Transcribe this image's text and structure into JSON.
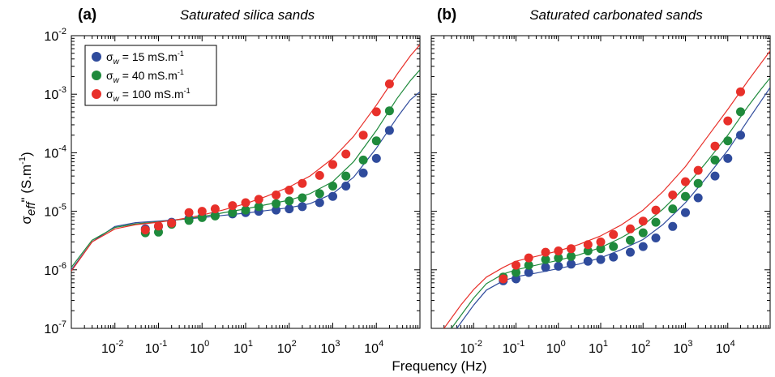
{
  "figure": {
    "xlabel": "Frequency (Hz)",
    "ylabel_main": "σ",
    "ylabel_sub": "eff",
    "ylabel_prime": "\"",
    "ylabel_unit": " (S.m",
    "ylabel_unit_exp": "-1",
    "ylabel_close": ")"
  },
  "legend": {
    "items": [
      {
        "sigma": "σ",
        "sub": "w",
        "text": " = 15 mS.m",
        "exp": "-1",
        "color": "#2f4b9c"
      },
      {
        "sigma": "σ",
        "sub": "w",
        "text": " = 40 mS.m",
        "exp": "-1",
        "color": "#1f8a3c"
      },
      {
        "sigma": "σ",
        "sub": "w",
        "text": " = 100 mS.m",
        "exp": "-1",
        "color": "#e8302a"
      }
    ]
  },
  "chart_data": [
    {
      "type": "scatter",
      "panel_label": "(a)",
      "title": "Saturated silica sands",
      "xscale": "log",
      "yscale": "log",
      "xlim": [
        0.001,
        100000
      ],
      "ylim": [
        1e-07,
        0.01
      ],
      "xtick_labels": [
        {
          "value": 0.01,
          "base": "10",
          "exp": "-2"
        },
        {
          "value": 0.1,
          "base": "10",
          "exp": "-1"
        },
        {
          "value": 1,
          "base": "10",
          "exp": "0"
        },
        {
          "value": 10,
          "base": "10",
          "exp": "1"
        },
        {
          "value": 100,
          "base": "10",
          "exp": "2"
        },
        {
          "value": 1000,
          "base": "10",
          "exp": "3"
        },
        {
          "value": 10000,
          "base": "10",
          "exp": "4"
        }
      ],
      "ytick_labels": [
        {
          "value": 1e-07,
          "base": "10",
          "exp": "-7"
        },
        {
          "value": 1e-06,
          "base": "10",
          "exp": "-6"
        },
        {
          "value": 1e-05,
          "base": "10",
          "exp": "-5"
        },
        {
          "value": 0.0001,
          "base": "10",
          "exp": "-4"
        },
        {
          "value": 0.001,
          "base": "10",
          "exp": "-3"
        },
        {
          "value": 0.01,
          "base": "10",
          "exp": "-2"
        }
      ],
      "series": [
        {
          "color": "#2f4b9c",
          "x": [
            0.05,
            0.1,
            0.2,
            0.5,
            1,
            2,
            5,
            10,
            20,
            50,
            100,
            200,
            500,
            1000,
            2000,
            5000,
            10000,
            20000
          ],
          "y": [
            5e-06,
            5.5e-06,
            6.5e-06,
            7.5e-06,
            8e-06,
            8.5e-06,
            9e-06,
            9.5e-06,
            1e-05,
            1.05e-05,
            1.1e-05,
            1.2e-05,
            1.4e-05,
            1.8e-05,
            2.7e-05,
            4.5e-05,
            8e-05,
            0.00024
          ],
          "fit_x": [
            0.001,
            0.003,
            0.01,
            0.03,
            0.1,
            0.3,
            1,
            3,
            10,
            30,
            100,
            300,
            1000,
            3000,
            10000,
            30000,
            60000,
            100000
          ],
          "fit_y": [
            1e-06,
            3e-06,
            5.5e-06,
            6.4e-06,
            6.8e-06,
            7.2e-06,
            7.8e-06,
            8.5e-06,
            9.3e-06,
            1.03e-05,
            1.15e-05,
            1.35e-05,
            2e-05,
            3.8e-05,
            0.00012,
            0.0004,
            0.0008,
            0.0011
          ]
        },
        {
          "color": "#1f8a3c",
          "x": [
            0.05,
            0.1,
            0.2,
            0.5,
            1,
            2,
            5,
            10,
            20,
            50,
            100,
            200,
            500,
            1000,
            2000,
            5000,
            10000,
            20000
          ],
          "y": [
            4.3e-06,
            4.4e-06,
            6e-06,
            7e-06,
            7.8e-06,
            8.3e-06,
            9.5e-06,
            1.05e-05,
            1.2e-05,
            1.35e-05,
            1.5e-05,
            1.7e-05,
            2e-05,
            2.7e-05,
            4e-05,
            7.5e-05,
            0.00016,
            0.00052
          ],
          "fit_x": [
            0.001,
            0.003,
            0.01,
            0.03,
            0.1,
            0.3,
            1,
            3,
            10,
            30,
            100,
            300,
            1000,
            3000,
            10000,
            30000,
            60000,
            100000
          ],
          "fit_y": [
            1.1e-06,
            3.2e-06,
            5.3e-06,
            6.1e-06,
            6.6e-06,
            7.2e-06,
            8.1e-06,
            9.4e-06,
            1.1e-05,
            1.3e-05,
            1.55e-05,
            2e-05,
            3.2e-05,
            7e-05,
            0.00024,
            0.00085,
            0.0017,
            0.0026
          ]
        },
        {
          "color": "#e8302a",
          "x": [
            0.05,
            0.1,
            0.2,
            0.5,
            1,
            2,
            5,
            10,
            20,
            50,
            100,
            200,
            500,
            1000,
            2000,
            5000,
            10000,
            20000
          ],
          "y": [
            4.8e-06,
            5.6e-06,
            6.3e-06,
            9.5e-06,
            1e-05,
            1.1e-05,
            1.25e-05,
            1.4e-05,
            1.6e-05,
            1.9e-05,
            2.3e-05,
            3e-05,
            4.1e-05,
            6.3e-05,
            9.5e-05,
            0.0002,
            0.0005,
            0.0015
          ],
          "fit_x": [
            0.001,
            0.003,
            0.01,
            0.03,
            0.1,
            0.3,
            1,
            3,
            10,
            30,
            100,
            300,
            1000,
            3000,
            10000,
            30000,
            60000,
            100000
          ],
          "fit_y": [
            9.5e-07,
            3e-06,
            5e-06,
            5.9e-06,
            6.5e-06,
            7.3e-06,
            8.6e-06,
            1.05e-05,
            1.35e-05,
            1.8e-05,
            2.6e-05,
            4e-05,
            8e-05,
            0.00019,
            0.00065,
            0.0022,
            0.0045,
            0.007
          ]
        }
      ]
    },
    {
      "type": "scatter",
      "panel_label": "(b)",
      "title": "Saturated carbonated sands",
      "xscale": "log",
      "yscale": "log",
      "xlim": [
        0.001,
        100000
      ],
      "ylim": [
        1e-07,
        0.01
      ],
      "xtick_labels": [
        {
          "value": 0.01,
          "base": "10",
          "exp": "-2"
        },
        {
          "value": 0.1,
          "base": "10",
          "exp": "-1"
        },
        {
          "value": 1,
          "base": "10",
          "exp": "0"
        },
        {
          "value": 10,
          "base": "10",
          "exp": "1"
        },
        {
          "value": 100,
          "base": "10",
          "exp": "2"
        },
        {
          "value": 1000,
          "base": "10",
          "exp": "3"
        },
        {
          "value": 10000,
          "base": "10",
          "exp": "4"
        }
      ],
      "ytick_labels": [],
      "series": [
        {
          "color": "#2f4b9c",
          "x": [
            0.05,
            0.1,
            0.2,
            0.5,
            1,
            2,
            5,
            10,
            20,
            50,
            100,
            200,
            500,
            1000,
            2000,
            5000,
            10000,
            20000
          ],
          "y": [
            6.5e-07,
            7e-07,
            9e-07,
            1.1e-06,
            1.15e-06,
            1.25e-06,
            1.4e-06,
            1.5e-06,
            1.65e-06,
            2e-06,
            2.5e-06,
            3.5e-06,
            5.5e-06,
            9.5e-06,
            1.7e-05,
            4e-05,
            8e-05,
            0.0002
          ],
          "fit_x": [
            0.004,
            0.01,
            0.02,
            0.05,
            0.1,
            0.3,
            1,
            3,
            10,
            30,
            100,
            300,
            1000,
            3000,
            10000,
            30000,
            60000,
            100000
          ],
          "fit_y": [
            1e-07,
            2.5e-07,
            4.5e-07,
            6.5e-07,
            7.6e-07,
            8.8e-07,
            1.05e-06,
            1.25e-06,
            1.6e-06,
            2.2e-06,
            3.3e-06,
            6e-06,
            1.4e-05,
            3.6e-05,
            0.00011,
            0.00036,
            0.00075,
            0.0013
          ]
        },
        {
          "color": "#1f8a3c",
          "x": [
            0.05,
            0.1,
            0.2,
            0.5,
            1,
            2,
            5,
            10,
            20,
            50,
            100,
            200,
            500,
            1000,
            2000,
            5000,
            10000,
            20000
          ],
          "y": [
            7.5e-07,
            9e-07,
            1.2e-06,
            1.5e-06,
            1.6e-06,
            1.7e-06,
            2.1e-06,
            2.3e-06,
            2.5e-06,
            3.2e-06,
            4.3e-06,
            6.5e-06,
            1.1e-05,
            1.8e-05,
            3e-05,
            7.5e-05,
            0.00016,
            0.0005
          ],
          "fit_x": [
            0.003,
            0.01,
            0.02,
            0.05,
            0.1,
            0.3,
            1,
            3,
            10,
            30,
            100,
            300,
            1000,
            3000,
            10000,
            30000,
            60000,
            100000
          ],
          "fit_y": [
            1e-07,
            3.3e-07,
            5.8e-07,
            8.5e-07,
            1e-06,
            1.2e-06,
            1.45e-06,
            1.8e-06,
            2.4e-06,
            3.5e-06,
            5.8e-06,
            1.1e-05,
            2.6e-05,
            6.6e-05,
            0.0002,
            0.00062,
            0.0012,
            0.0019
          ]
        },
        {
          "color": "#e8302a",
          "x": [
            0.05,
            0.1,
            0.2,
            0.5,
            1,
            2,
            5,
            10,
            20,
            50,
            100,
            200,
            500,
            1000,
            2000,
            5000,
            10000,
            20000
          ],
          "y": [
            7e-07,
            1.2e-06,
            1.6e-06,
            2e-06,
            2.1e-06,
            2.3e-06,
            2.7e-06,
            3e-06,
            4e-06,
            5e-06,
            6.8e-06,
            1.05e-05,
            1.9e-05,
            3.2e-05,
            5e-05,
            0.00013,
            0.00035,
            0.0011
          ],
          "fit_x": [
            0.002,
            0.005,
            0.01,
            0.02,
            0.05,
            0.1,
            0.3,
            1,
            3,
            10,
            30,
            100,
            300,
            1000,
            3000,
            10000,
            30000,
            100000
          ],
          "fit_y": [
            1e-07,
            2.5e-07,
            4.6e-07,
            7.5e-07,
            1.1e-06,
            1.4e-06,
            1.7e-06,
            2.1e-06,
            2.7e-06,
            3.8e-06,
            5.8e-06,
            1.05e-05,
            2.2e-05,
            5.8e-05,
            0.00017,
            0.00055,
            0.0017,
            0.0055
          ]
        }
      ]
    }
  ]
}
